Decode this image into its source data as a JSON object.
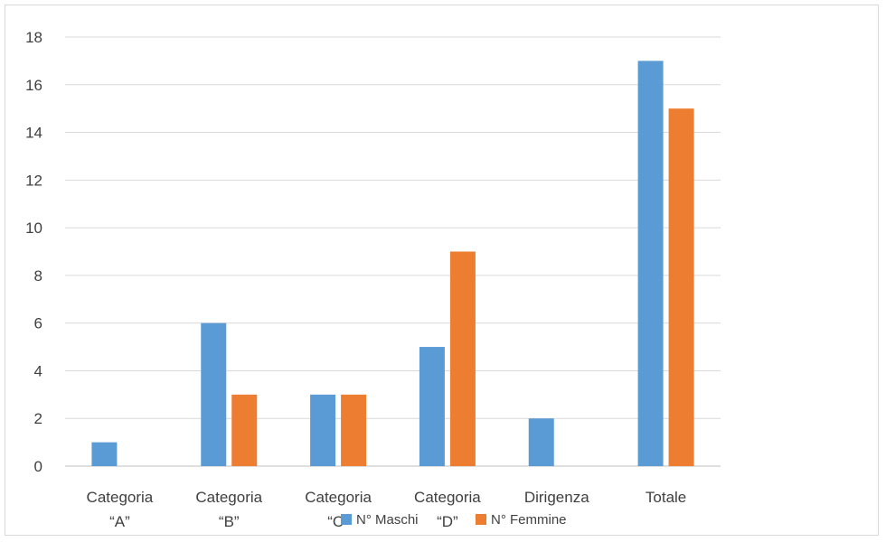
{
  "chart_data": {
    "type": "bar",
    "categories": [
      [
        "Categoria",
        "“A”"
      ],
      [
        "Categoria",
        "“B”"
      ],
      [
        "Categoria",
        "“C”"
      ],
      [
        "Categoria",
        "“D”"
      ],
      [
        "Dirigenza"
      ],
      [
        "Totale"
      ]
    ],
    "series": [
      {
        "name": "N° Maschi",
        "color": "#5B9BD5",
        "values": [
          1,
          6,
          3,
          5,
          2,
          17
        ]
      },
      {
        "name": "N° Femmine",
        "color": "#ED7D31",
        "values": [
          0,
          3,
          3,
          9,
          0,
          15
        ]
      }
    ],
    "yticks": [
      "0",
      "2",
      "4",
      "6",
      "8",
      "10",
      "12",
      "14",
      "16",
      "18"
    ],
    "ylim": [
      0,
      18
    ],
    "grid": true,
    "legend_position": "bottom",
    "title": "",
    "xlabel": "",
    "ylabel": ""
  }
}
